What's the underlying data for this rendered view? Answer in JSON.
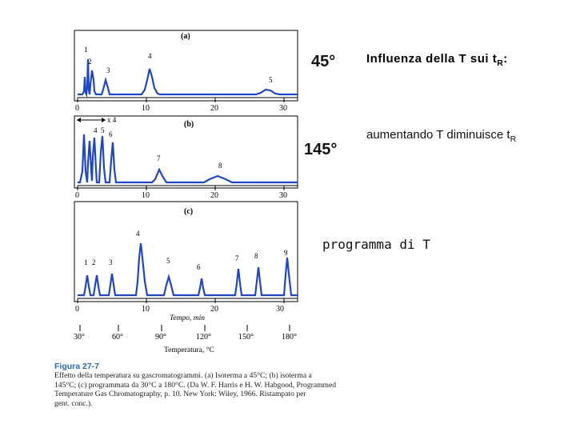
{
  "figure": {
    "panels": [
      {
        "label": "(a)",
        "peaks": [
          "1",
          "2",
          "3",
          "4",
          "5"
        ],
        "ticks": [
          "0",
          "10",
          "20",
          "30"
        ]
      },
      {
        "label": "(b)",
        "attenuation": "x 4",
        "peaks": [
          "4",
          "5",
          "6",
          "7",
          "8"
        ],
        "ticks": [
          "0",
          "10",
          "20",
          "30"
        ]
      },
      {
        "label": "(c)",
        "peaks": [
          "1",
          "2",
          "3",
          "4",
          "5",
          "6",
          "7",
          "8",
          "9"
        ],
        "ticks": [
          "0",
          "10",
          "20",
          "30"
        ]
      }
    ],
    "time_axis_label": "Tempo, min",
    "temperature_ticks": [
      "30°",
      "60°",
      "90°",
      "120°",
      "150°",
      "180°"
    ],
    "temperature_axis_label": "Temperatura, °C",
    "caption_title": "Figura 27-7",
    "caption_lines": [
      "Effetto della temperatura su gascromatogrammi. (a) Isoterma a 45°C; (b) isoterma a",
      "145°C; (c) programmata da 30°C a 180°C. (Da W. F. Harris e H. W. Habgood, Programmed Temperature Gas Chromatography, p. 10. New York: Wiley, 1966. Ristampato per",
      "gent. conc.)."
    ]
  },
  "slide": {
    "temp_a": "45°",
    "temp_b": "145°",
    "title_main": "Influenza della T sui t",
    "title_sub": "R",
    "title_end": ":",
    "text_main": "aumentando T diminuisce t",
    "text_sub": "R",
    "program_label": "programma di T"
  },
  "colors": {
    "trace": "#1f46c8",
    "axis": "#000000"
  }
}
